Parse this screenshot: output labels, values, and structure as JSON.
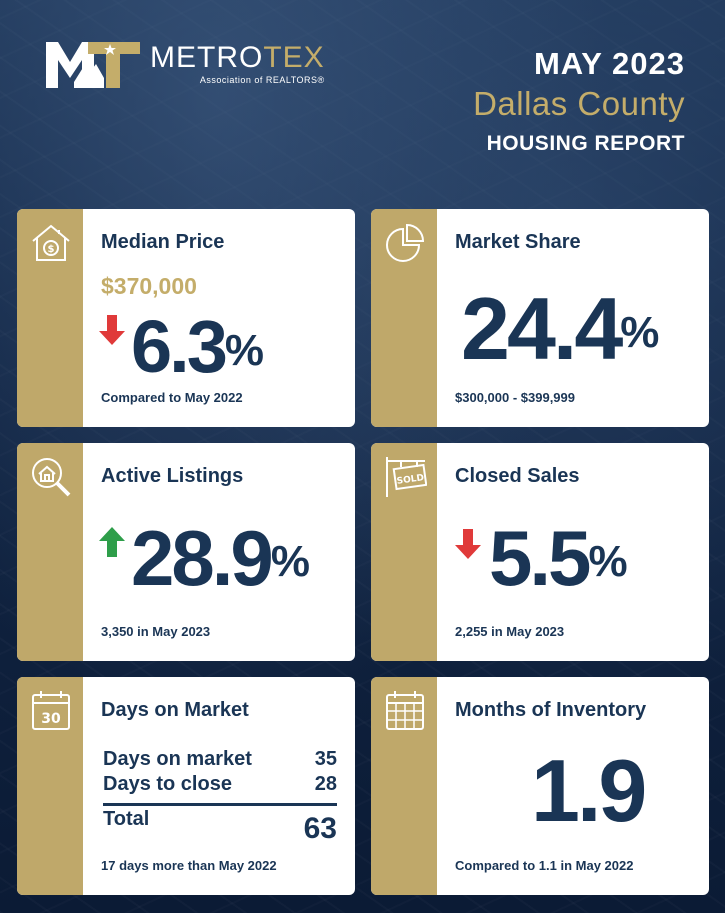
{
  "header": {
    "logo_metro": "METRO",
    "logo_tex": "TEX",
    "logo_subtitle": "Association of REALTORS®",
    "month": "MAY 2023",
    "county": "Dallas County",
    "report": "HOUSING REPORT"
  },
  "cards": {
    "median_price": {
      "icon": "house-dollar-icon",
      "title": "Median Price",
      "price": "$370,000",
      "direction": "down",
      "value": "6.3",
      "unit": "%",
      "footer": "Compared to May 2022"
    },
    "market_share": {
      "icon": "pie-chart-icon",
      "title": "Market Share",
      "value": "24.4",
      "unit": "%",
      "footer": "$300,000 - $399,999"
    },
    "active_listings": {
      "icon": "house-magnifier-icon",
      "title": "Active Listings",
      "direction": "up",
      "value": "28.9",
      "unit": "%",
      "footer": "3,350 in May 2023"
    },
    "closed_sales": {
      "icon": "sold-sign-icon",
      "title": "Closed Sales",
      "direction": "down",
      "value": "5.5",
      "unit": "%",
      "footer": "2,255 in May 2023"
    },
    "days_on_market": {
      "icon": "calendar-30-icon",
      "icon_text": "30",
      "title": "Days on Market",
      "rows": [
        {
          "label": "Days on market",
          "value": "35"
        },
        {
          "label": "Days to close",
          "value": "28"
        }
      ],
      "total_label": "Total",
      "total_value": "63",
      "footer": "17 days more than May 2022"
    },
    "months_inventory": {
      "icon": "calendar-grid-icon",
      "title": "Months of Inventory",
      "value": "1.9",
      "footer": "Compared to 1.1 in May 2022"
    }
  },
  "colors": {
    "navy": "#1a3555",
    "gold": "#bfa86a",
    "down_arrow": "#e03a3a",
    "up_arrow": "#2e9e4a",
    "background": "#0d1e3b"
  }
}
